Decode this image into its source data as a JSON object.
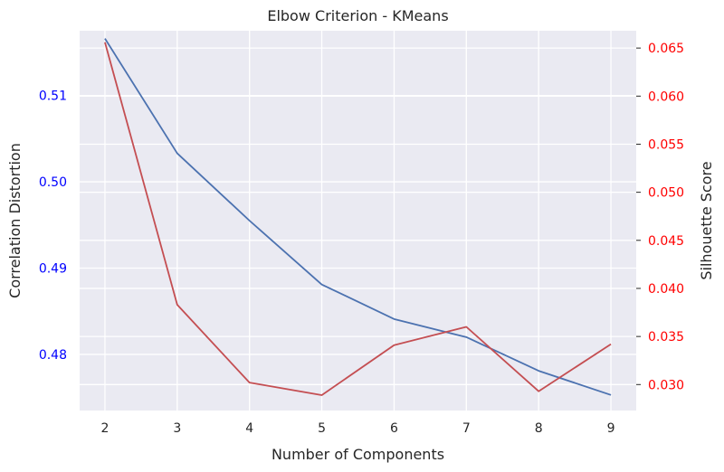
{
  "chart_data": {
    "type": "line",
    "title": "Elbow Criterion - KMeans",
    "xlabel": "Number of Components",
    "ylabel_left": "Correlation Distortion",
    "ylabel_right": "Silhouette Score",
    "x": [
      2,
      3,
      4,
      5,
      6,
      7,
      8,
      9
    ],
    "xlim": [
      1.65,
      9.35
    ],
    "grid": true,
    "left_axis": {
      "ylim": [
        0.4735,
        0.5175
      ],
      "ticks": [
        0.48,
        0.49,
        0.5,
        0.51
      ],
      "tick_labels": [
        "0.48",
        "0.49",
        "0.50",
        "0.51"
      ],
      "tick_color": "#0000ff"
    },
    "right_axis": {
      "ylim": [
        0.0273,
        0.0668
      ],
      "ticks": [
        0.03,
        0.035,
        0.04,
        0.045,
        0.05,
        0.055,
        0.06,
        0.065
      ],
      "tick_labels": [
        "0.030",
        "0.035",
        "0.040",
        "0.045",
        "0.050",
        "0.055",
        "0.060",
        "0.065"
      ],
      "tick_color": "#ff0000"
    },
    "series": [
      {
        "axis": "left",
        "color": "#4c72b0",
        "values": [
          0.5166,
          0.5033,
          0.4955,
          0.4881,
          0.4841,
          0.482,
          0.4781,
          0.4753
        ]
      },
      {
        "axis": "right",
        "color": "#c44e52",
        "values": [
          0.0656,
          0.0383,
          0.0302,
          0.0289,
          0.0341,
          0.036,
          0.0293,
          0.0342
        ]
      }
    ],
    "colors": {
      "plot_background": "#eaeaf2",
      "grid": "#ffffff",
      "text": "#262626"
    }
  }
}
